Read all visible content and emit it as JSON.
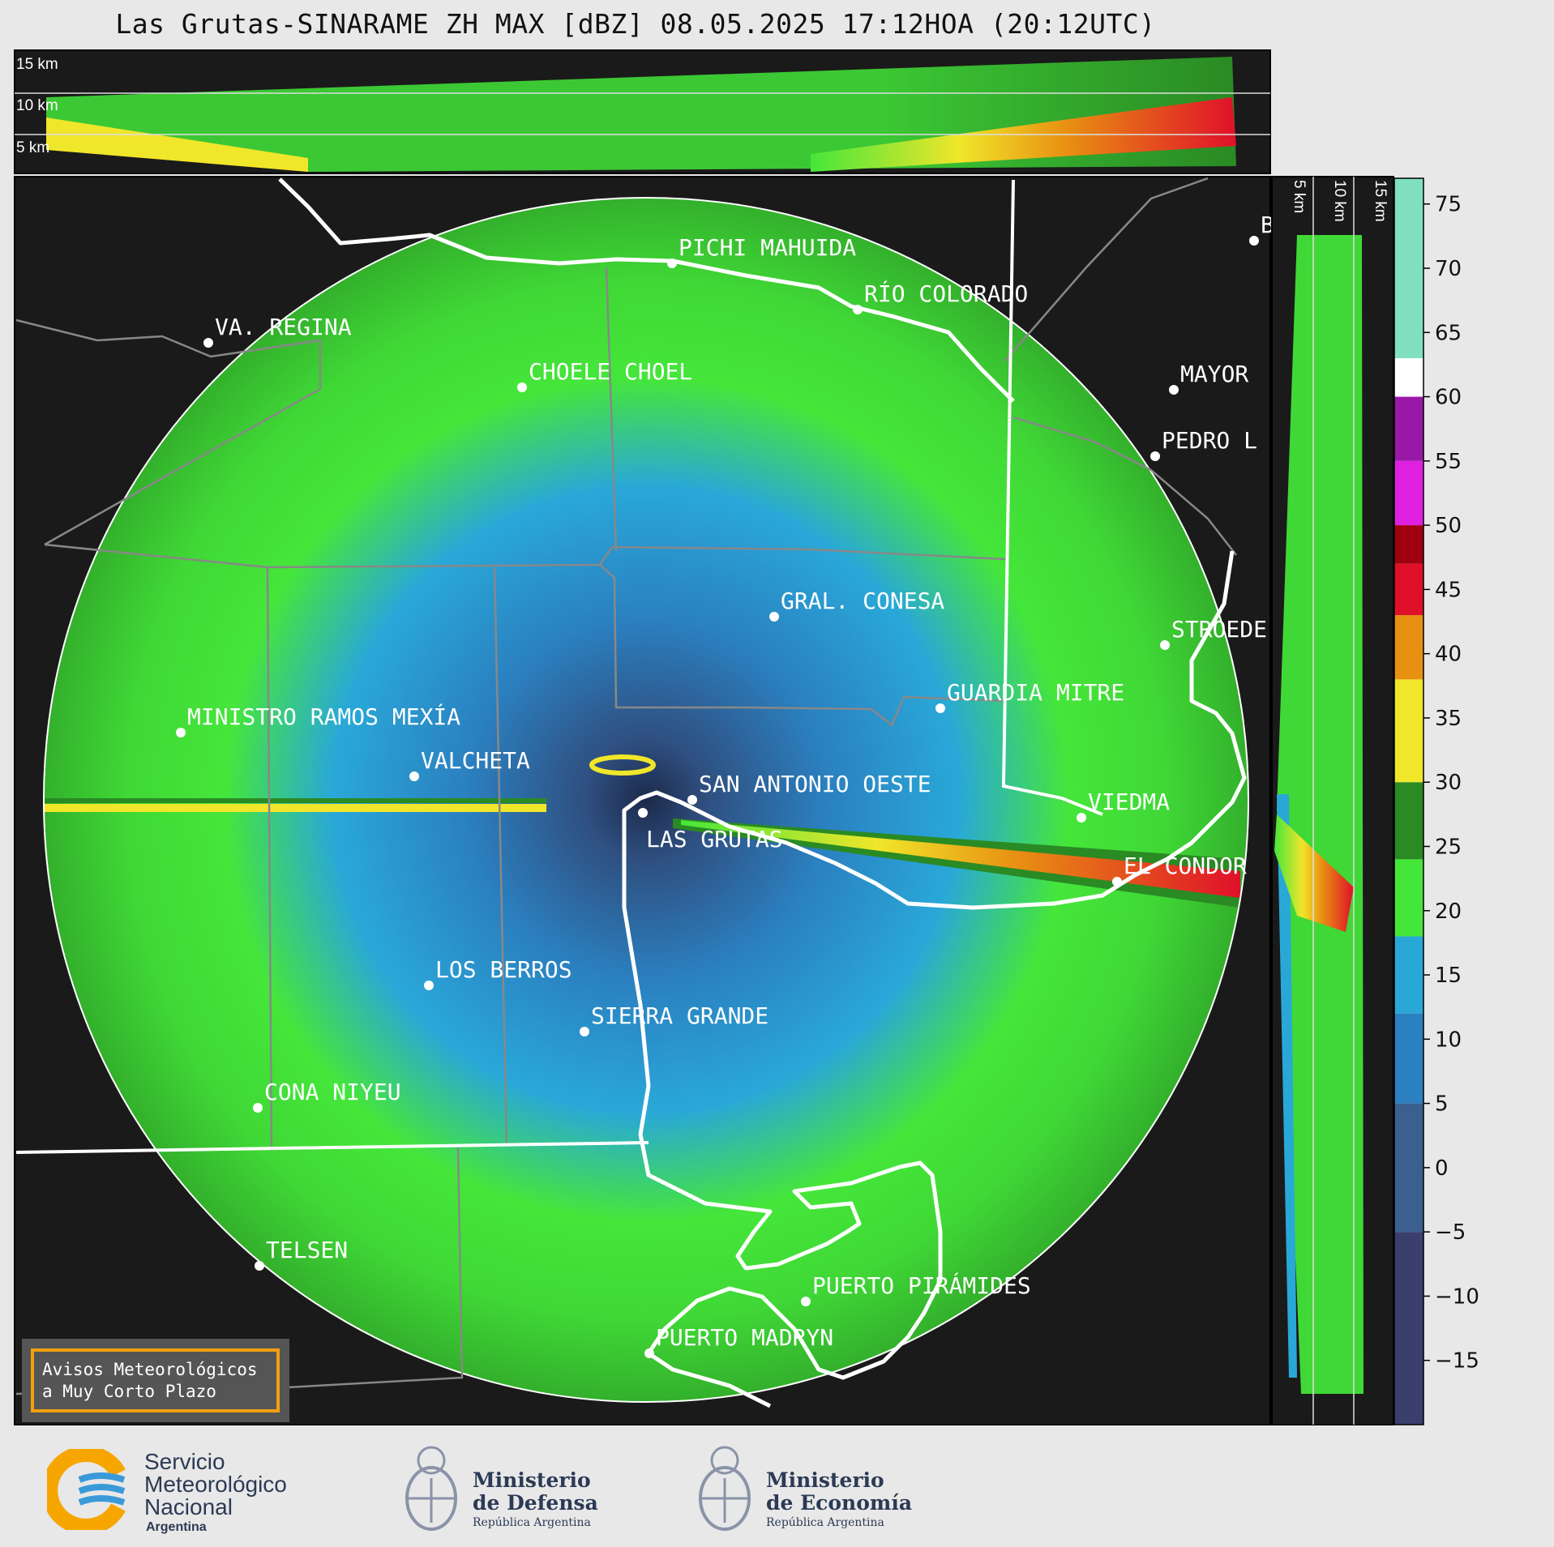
{
  "title": "Las Grutas-SINARAME ZH MAX [dBZ] 08.05.2025 17:12HOA (20:12UTC)",
  "top_panel": {
    "height_labels": [
      "15 km",
      "10 km",
      "5 km"
    ]
  },
  "side_panel": {
    "height_labels": [
      "5 km",
      "10 km",
      "15 km"
    ]
  },
  "places": [
    "PICHI MAHUIDA",
    "RÍO COLORADO",
    "VA. REGINA",
    "CHOELE CHOEL",
    "MAYOR",
    "PEDRO L",
    "B",
    "GRAL. CONESA",
    "STROEDE",
    "GUARDIA MITRE",
    "MINISTRO RAMOS MEXÍA",
    "VALCHETA",
    "SAN ANTONIO OESTE",
    "VIEDMA",
    "LAS GRUTAS",
    "EL CONDOR",
    "LOS BERROS",
    "SIERRA GRANDE",
    "CONA NIYEU",
    "TELSEN",
    "PUERTO PIRÁMIDES",
    "PUERTO MADRYN"
  ],
  "colorbar": {
    "ticks": [
      "75",
      "70",
      "65",
      "60",
      "55",
      "50",
      "45",
      "40",
      "35",
      "30",
      "25",
      "20",
      "15",
      "10",
      "5",
      "0",
      "−5",
      "−10",
      "−15"
    ],
    "tick_values": [
      75,
      70,
      65,
      60,
      55,
      50,
      45,
      40,
      35,
      30,
      25,
      20,
      15,
      10,
      5,
      0,
      -5,
      -10,
      -15
    ],
    "range": [
      -20,
      77
    ],
    "colors": {
      "neg": "#3a3f6e",
      "near0": "#3b5f8f",
      "low": "#2b80c0",
      "blue": "#29a8d8",
      "green": "#45e63a",
      "darkgreen": "#2a8a24",
      "yellow": "#f0e62a",
      "orange": "#e89012",
      "red": "#e0102a",
      "darkred": "#a00010",
      "magenta": "#e020e0",
      "purple": "#9a18a8",
      "white": "#ffffff",
      "teal": "#80e0c0"
    }
  },
  "alert_box": {
    "line1": "Avisos Meteorológicos",
    "line2": "a Muy Corto Plazo"
  },
  "footer": {
    "smn": {
      "line1": "Servicio",
      "line2": "Meteorológico",
      "line3": "Nacional",
      "line4": "Argentina"
    },
    "defensa": {
      "line1": "Ministerio",
      "line2": "de Defensa",
      "line3": "República Argentina"
    },
    "economia": {
      "line1": "Ministerio",
      "line2": "de Economía",
      "line3": "República Argentina"
    }
  }
}
